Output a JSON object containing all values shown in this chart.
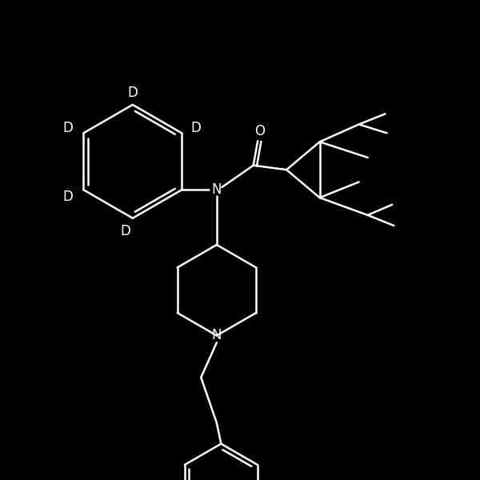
{
  "bg": "#000000",
  "fg": "#ffffff",
  "lw": 1.8,
  "fs": 12.0,
  "xlim": [
    40,
    590
  ],
  "ylim": [
    30,
    580
  ]
}
